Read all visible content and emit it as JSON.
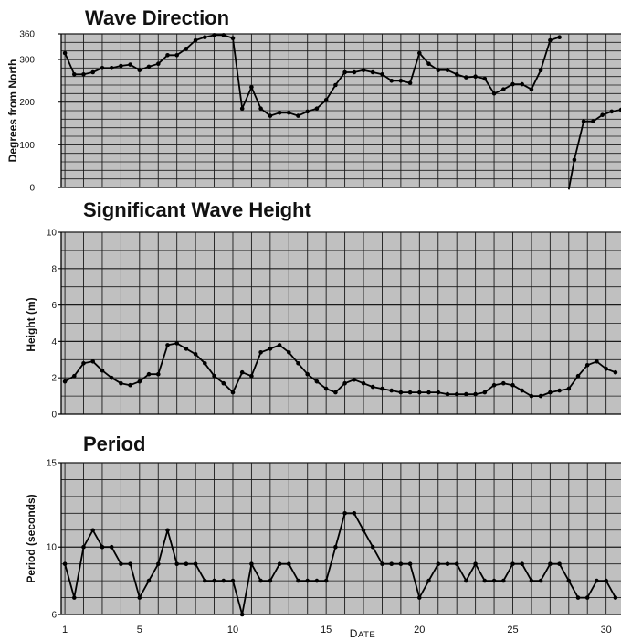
{
  "chart_data": [
    {
      "type": "line",
      "title": "Wave Direction",
      "ylabel": "Degrees from North",
      "ylim": [
        0,
        360
      ],
      "yticks": [
        0,
        100,
        200,
        300,
        360
      ],
      "grid": true,
      "series": [
        {
          "points": [
            [
              1,
              315
            ],
            [
              1.5,
              265
            ],
            [
              2,
              265
            ],
            [
              2.5,
              270
            ],
            [
              3,
              280
            ],
            [
              3.5,
              280
            ],
            [
              4,
              285
            ],
            [
              4.5,
              288
            ],
            [
              5,
              275
            ],
            [
              5.5,
              283
            ],
            [
              6,
              290
            ],
            [
              6.5,
              310
            ],
            [
              7,
              310
            ],
            [
              7.5,
              325
            ],
            [
              8,
              345
            ],
            [
              8.5,
              352
            ],
            [
              9,
              357
            ],
            [
              9.5,
              357
            ],
            [
              10,
              350
            ],
            [
              10.5,
              185
            ],
            [
              11,
              235
            ],
            [
              11.5,
              185
            ],
            [
              12,
              168
            ],
            [
              12.5,
              175
            ],
            [
              13,
              175
            ],
            [
              13.5,
              168
            ],
            [
              14,
              178
            ],
            [
              14.5,
              185
            ],
            [
              15,
              205
            ],
            [
              15.5,
              240
            ],
            [
              16,
              270
            ],
            [
              16.5,
              270
            ],
            [
              17,
              275
            ],
            [
              17.5,
              270
            ],
            [
              18,
              265
            ],
            [
              18.5,
              250
            ],
            [
              19,
              250
            ],
            [
              19.5,
              245
            ],
            [
              20,
              315
            ],
            [
              20.5,
              290
            ],
            [
              21,
              275
            ],
            [
              21.5,
              275
            ],
            [
              22,
              265
            ],
            [
              22.5,
              258
            ],
            [
              23,
              260
            ],
            [
              23.5,
              255
            ],
            [
              24,
              220
            ],
            [
              24.5,
              230
            ],
            [
              25,
              242
            ],
            [
              25.5,
              242
            ],
            [
              26,
              230
            ],
            [
              26.5,
              275
            ],
            [
              27,
              345
            ],
            [
              27.5,
              352
            ]
          ]
        },
        {
          "points": [
            [
              28,
              -5
            ],
            [
              28.3,
              65
            ],
            [
              28.8,
              155
            ],
            [
              29.3,
              155
            ],
            [
              29.8,
              170
            ],
            [
              30.3,
              178
            ],
            [
              30.8,
              182
            ]
          ]
        }
      ]
    },
    {
      "type": "line",
      "title": "Significant Wave Height",
      "ylabel": "Height (m)",
      "ylim": [
        0,
        10
      ],
      "yticks": [
        0,
        2,
        4,
        6,
        8,
        10
      ],
      "grid": true,
      "series": [
        {
          "points": [
            [
              1,
              1.8
            ],
            [
              1.5,
              2.1
            ],
            [
              2,
              2.8
            ],
            [
              2.5,
              2.9
            ],
            [
              3,
              2.4
            ],
            [
              3.5,
              2.0
            ],
            [
              4,
              1.7
            ],
            [
              4.5,
              1.6
            ],
            [
              5,
              1.8
            ],
            [
              5.5,
              2.2
            ],
            [
              6,
              2.2
            ],
            [
              6.5,
              3.8
            ],
            [
              7,
              3.9
            ],
            [
              7.5,
              3.6
            ],
            [
              8,
              3.3
            ],
            [
              8.5,
              2.8
            ],
            [
              9,
              2.1
            ],
            [
              9.5,
              1.7
            ],
            [
              10,
              1.2
            ],
            [
              10.5,
              2.3
            ],
            [
              11,
              2.1
            ],
            [
              11.5,
              3.4
            ],
            [
              12,
              3.6
            ],
            [
              12.5,
              3.8
            ],
            [
              13,
              3.4
            ],
            [
              13.5,
              2.8
            ],
            [
              14,
              2.2
            ],
            [
              14.5,
              1.8
            ],
            [
              15,
              1.4
            ],
            [
              15.5,
              1.2
            ],
            [
              16,
              1.7
            ],
            [
              16.5,
              1.9
            ],
            [
              17,
              1.7
            ],
            [
              17.5,
              1.5
            ],
            [
              18,
              1.4
            ],
            [
              18.5,
              1.3
            ],
            [
              19,
              1.2
            ],
            [
              19.5,
              1.2
            ],
            [
              20,
              1.2
            ],
            [
              20.5,
              1.2
            ],
            [
              21,
              1.2
            ],
            [
              21.5,
              1.1
            ],
            [
              22,
              1.1
            ],
            [
              22.5,
              1.1
            ],
            [
              23,
              1.1
            ],
            [
              23.5,
              1.2
            ],
            [
              24,
              1.6
            ],
            [
              24.5,
              1.7
            ],
            [
              25,
              1.6
            ],
            [
              25.5,
              1.3
            ],
            [
              26,
              1.0
            ],
            [
              26.5,
              1.0
            ],
            [
              27,
              1.2
            ],
            [
              27.5,
              1.3
            ],
            [
              28,
              1.4
            ],
            [
              28.5,
              2.1
            ],
            [
              29,
              2.7
            ],
            [
              29.5,
              2.9
            ],
            [
              30,
              2.5
            ],
            [
              30.5,
              2.3
            ]
          ]
        }
      ]
    },
    {
      "type": "line",
      "title": "Period",
      "ylabel": "Period (seconds)",
      "ylim": [
        6,
        15
      ],
      "yticks": [
        6,
        10,
        15
      ],
      "grid": true,
      "series": [
        {
          "points": [
            [
              1,
              9
            ],
            [
              1.5,
              7
            ],
            [
              2,
              10
            ],
            [
              2.5,
              11
            ],
            [
              3,
              10
            ],
            [
              3.5,
              10
            ],
            [
              4,
              9
            ],
            [
              4.5,
              9
            ],
            [
              5,
              7
            ],
            [
              5.5,
              8
            ],
            [
              6,
              9
            ],
            [
              6.5,
              11
            ],
            [
              7,
              9
            ],
            [
              7.5,
              9
            ],
            [
              8,
              9
            ],
            [
              8.5,
              8
            ],
            [
              9,
              8
            ],
            [
              9.5,
              8
            ],
            [
              10,
              8
            ],
            [
              10.5,
              6
            ],
            [
              11,
              9
            ],
            [
              11.5,
              8
            ],
            [
              12,
              8
            ],
            [
              12.5,
              9
            ],
            [
              13,
              9
            ],
            [
              13.5,
              8
            ],
            [
              14,
              8
            ],
            [
              14.5,
              8
            ],
            [
              15,
              8
            ],
            [
              15.5,
              10
            ],
            [
              16,
              12
            ],
            [
              16.5,
              12
            ],
            [
              17,
              11
            ],
            [
              17.5,
              10
            ],
            [
              18,
              9
            ],
            [
              18.5,
              9
            ],
            [
              19,
              9
            ],
            [
              19.5,
              9
            ],
            [
              20,
              7
            ],
            [
              20.5,
              8
            ],
            [
              21,
              9
            ],
            [
              21.5,
              9
            ],
            [
              22,
              9
            ],
            [
              22.5,
              8
            ],
            [
              23,
              9
            ],
            [
              23.5,
              8
            ],
            [
              24,
              8
            ],
            [
              24.5,
              8
            ],
            [
              25,
              9
            ],
            [
              25.5,
              9
            ],
            [
              26,
              8
            ],
            [
              26.5,
              8
            ],
            [
              27,
              9
            ],
            [
              27.5,
              9
            ],
            [
              28,
              8
            ],
            [
              28.5,
              7
            ],
            [
              29,
              7
            ],
            [
              29.5,
              8
            ],
            [
              30,
              8
            ],
            [
              30.5,
              7
            ]
          ]
        }
      ]
    }
  ],
  "x_axis": {
    "label": "Date",
    "ticks": [
      1,
      5,
      10,
      15,
      20,
      25,
      30
    ],
    "xlim": [
      0.8,
      30.8
    ]
  },
  "colors": {
    "plot_background": "#c0c0c0",
    "grid": "#1a1a1a",
    "line": "#000000"
  }
}
